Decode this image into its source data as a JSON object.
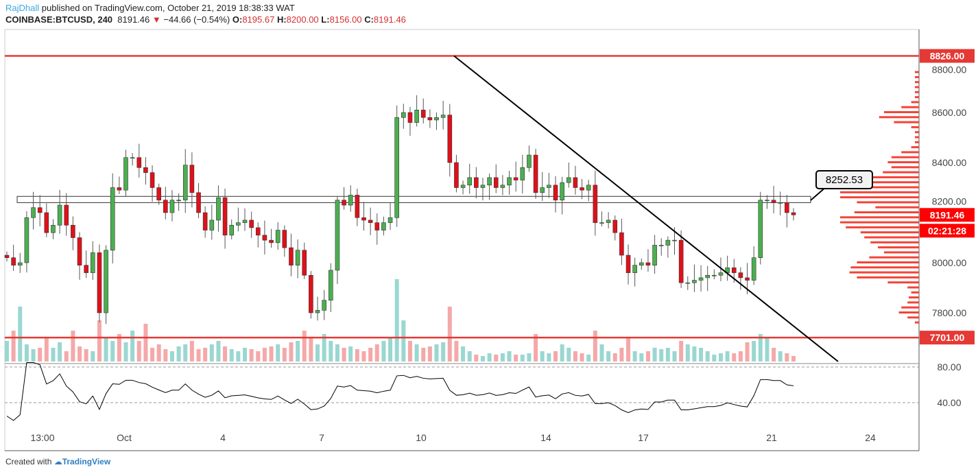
{
  "header": {
    "author": "RajDhall",
    "published": "published on TradingView.com, October 21, 2019 18:38:33 WAT",
    "symbol": "COINBASE:BTCUSD, 240",
    "last": "8191.46",
    "change": "−44.66 (−0.54%)",
    "o_label": "O:",
    "o": "8195.67",
    "h_label": "H:",
    "h": "8200.00",
    "l_label": "L:",
    "l": "8156.00",
    "c_label": "C:",
    "c": "8191.46"
  },
  "footer": {
    "created": "Created with",
    "brand": "TradingView"
  },
  "colors": {
    "up": "#53b987",
    "down": "#eb4d5c",
    "level": "#e53935",
    "badge": "#ff0000"
  },
  "chart_data": {
    "type": "candlestick",
    "title": "COINBASE:BTCUSD, 240",
    "ylim": [
      7660,
      8860
    ],
    "price_ticks": [
      "8800.00",
      "8600.00",
      "8400.00",
      "8200.00",
      "8000.00",
      "7800.00"
    ],
    "x_ticks": [
      "13:00",
      "Oct",
      "4",
      "7",
      "10",
      "14",
      "17",
      "21",
      "24"
    ],
    "levels": [
      {
        "label": "8826.00",
        "value": 8826
      },
      {
        "label": "7701.00",
        "value": 7701
      }
    ],
    "resistance_zone": [
      8240,
      8265
    ],
    "callout": "8252.53",
    "last_price_badge": "8191.46",
    "countdown": "02:21:28",
    "trendline": [
      [
        8826,
        0.565
      ],
      [
        7660,
        1.06
      ]
    ],
    "closes": [
      8020,
      7990,
      8000,
      8180,
      8220,
      8200,
      8120,
      8150,
      8230,
      8150,
      8100,
      7990,
      7960,
      8040,
      7800,
      8050,
      8300,
      8290,
      8420,
      8420,
      8380,
      8360,
      8300,
      8250,
      8200,
      8250,
      8250,
      8390,
      8280,
      8200,
      8130,
      8170,
      8260,
      8110,
      8150,
      8160,
      8170,
      8140,
      8110,
      8090,
      8080,
      8130,
      8060,
      7990,
      8050,
      7950,
      7800,
      7810,
      7850,
      7970,
      8250,
      8230,
      8270,
      8180,
      8170,
      8160,
      8130,
      8160,
      8180,
      8580,
      8600,
      8560,
      8610,
      8580,
      8570,
      8580,
      8590,
      8400,
      8300,
      8310,
      8340,
      8300,
      8310,
      8340,
      8300,
      8310,
      8340,
      8330,
      8380,
      8430,
      8280,
      8300,
      8310,
      8250,
      8320,
      8340,
      8300,
      8290,
      8310,
      8160,
      8160,
      8170,
      8120,
      8030,
      7960,
      7990,
      8000,
      7990,
      8070,
      8070,
      8090,
      8090,
      7920,
      7920,
      7930,
      7940,
      7950,
      7950,
      7960,
      7980,
      7960,
      7940,
      7930,
      8020,
      8250,
      8250,
      8240,
      8240,
      8200,
      8191
    ],
    "volumes": [
      30,
      45,
      80,
      25,
      18,
      20,
      35,
      20,
      28,
      15,
      45,
      22,
      18,
      15,
      60,
      35,
      30,
      40,
      28,
      45,
      30,
      55,
      20,
      25,
      18,
      15,
      22,
      25,
      30,
      18,
      20,
      25,
      30,
      22,
      18,
      15,
      20,
      18,
      15,
      20,
      22,
      25,
      20,
      28,
      30,
      45,
      35,
      25,
      40,
      30,
      25,
      20,
      22,
      18,
      15,
      20,
      25,
      30,
      35,
      120,
      60,
      30,
      25,
      20,
      22,
      25,
      28,
      80,
      30,
      22,
      15,
      10,
      8,
      12,
      10,
      12,
      15,
      10,
      10,
      12,
      40,
      15,
      12,
      15,
      25,
      20,
      15,
      12,
      10,
      45,
      25,
      15,
      12,
      20,
      35,
      15,
      12,
      15,
      20,
      18,
      20,
      15,
      30,
      25,
      22,
      20,
      15,
      10,
      12,
      15,
      12,
      15,
      28,
      30,
      40,
      35,
      20,
      15,
      12,
      8
    ],
    "rsi_ticks": [
      "80.00",
      "40.00"
    ]
  }
}
